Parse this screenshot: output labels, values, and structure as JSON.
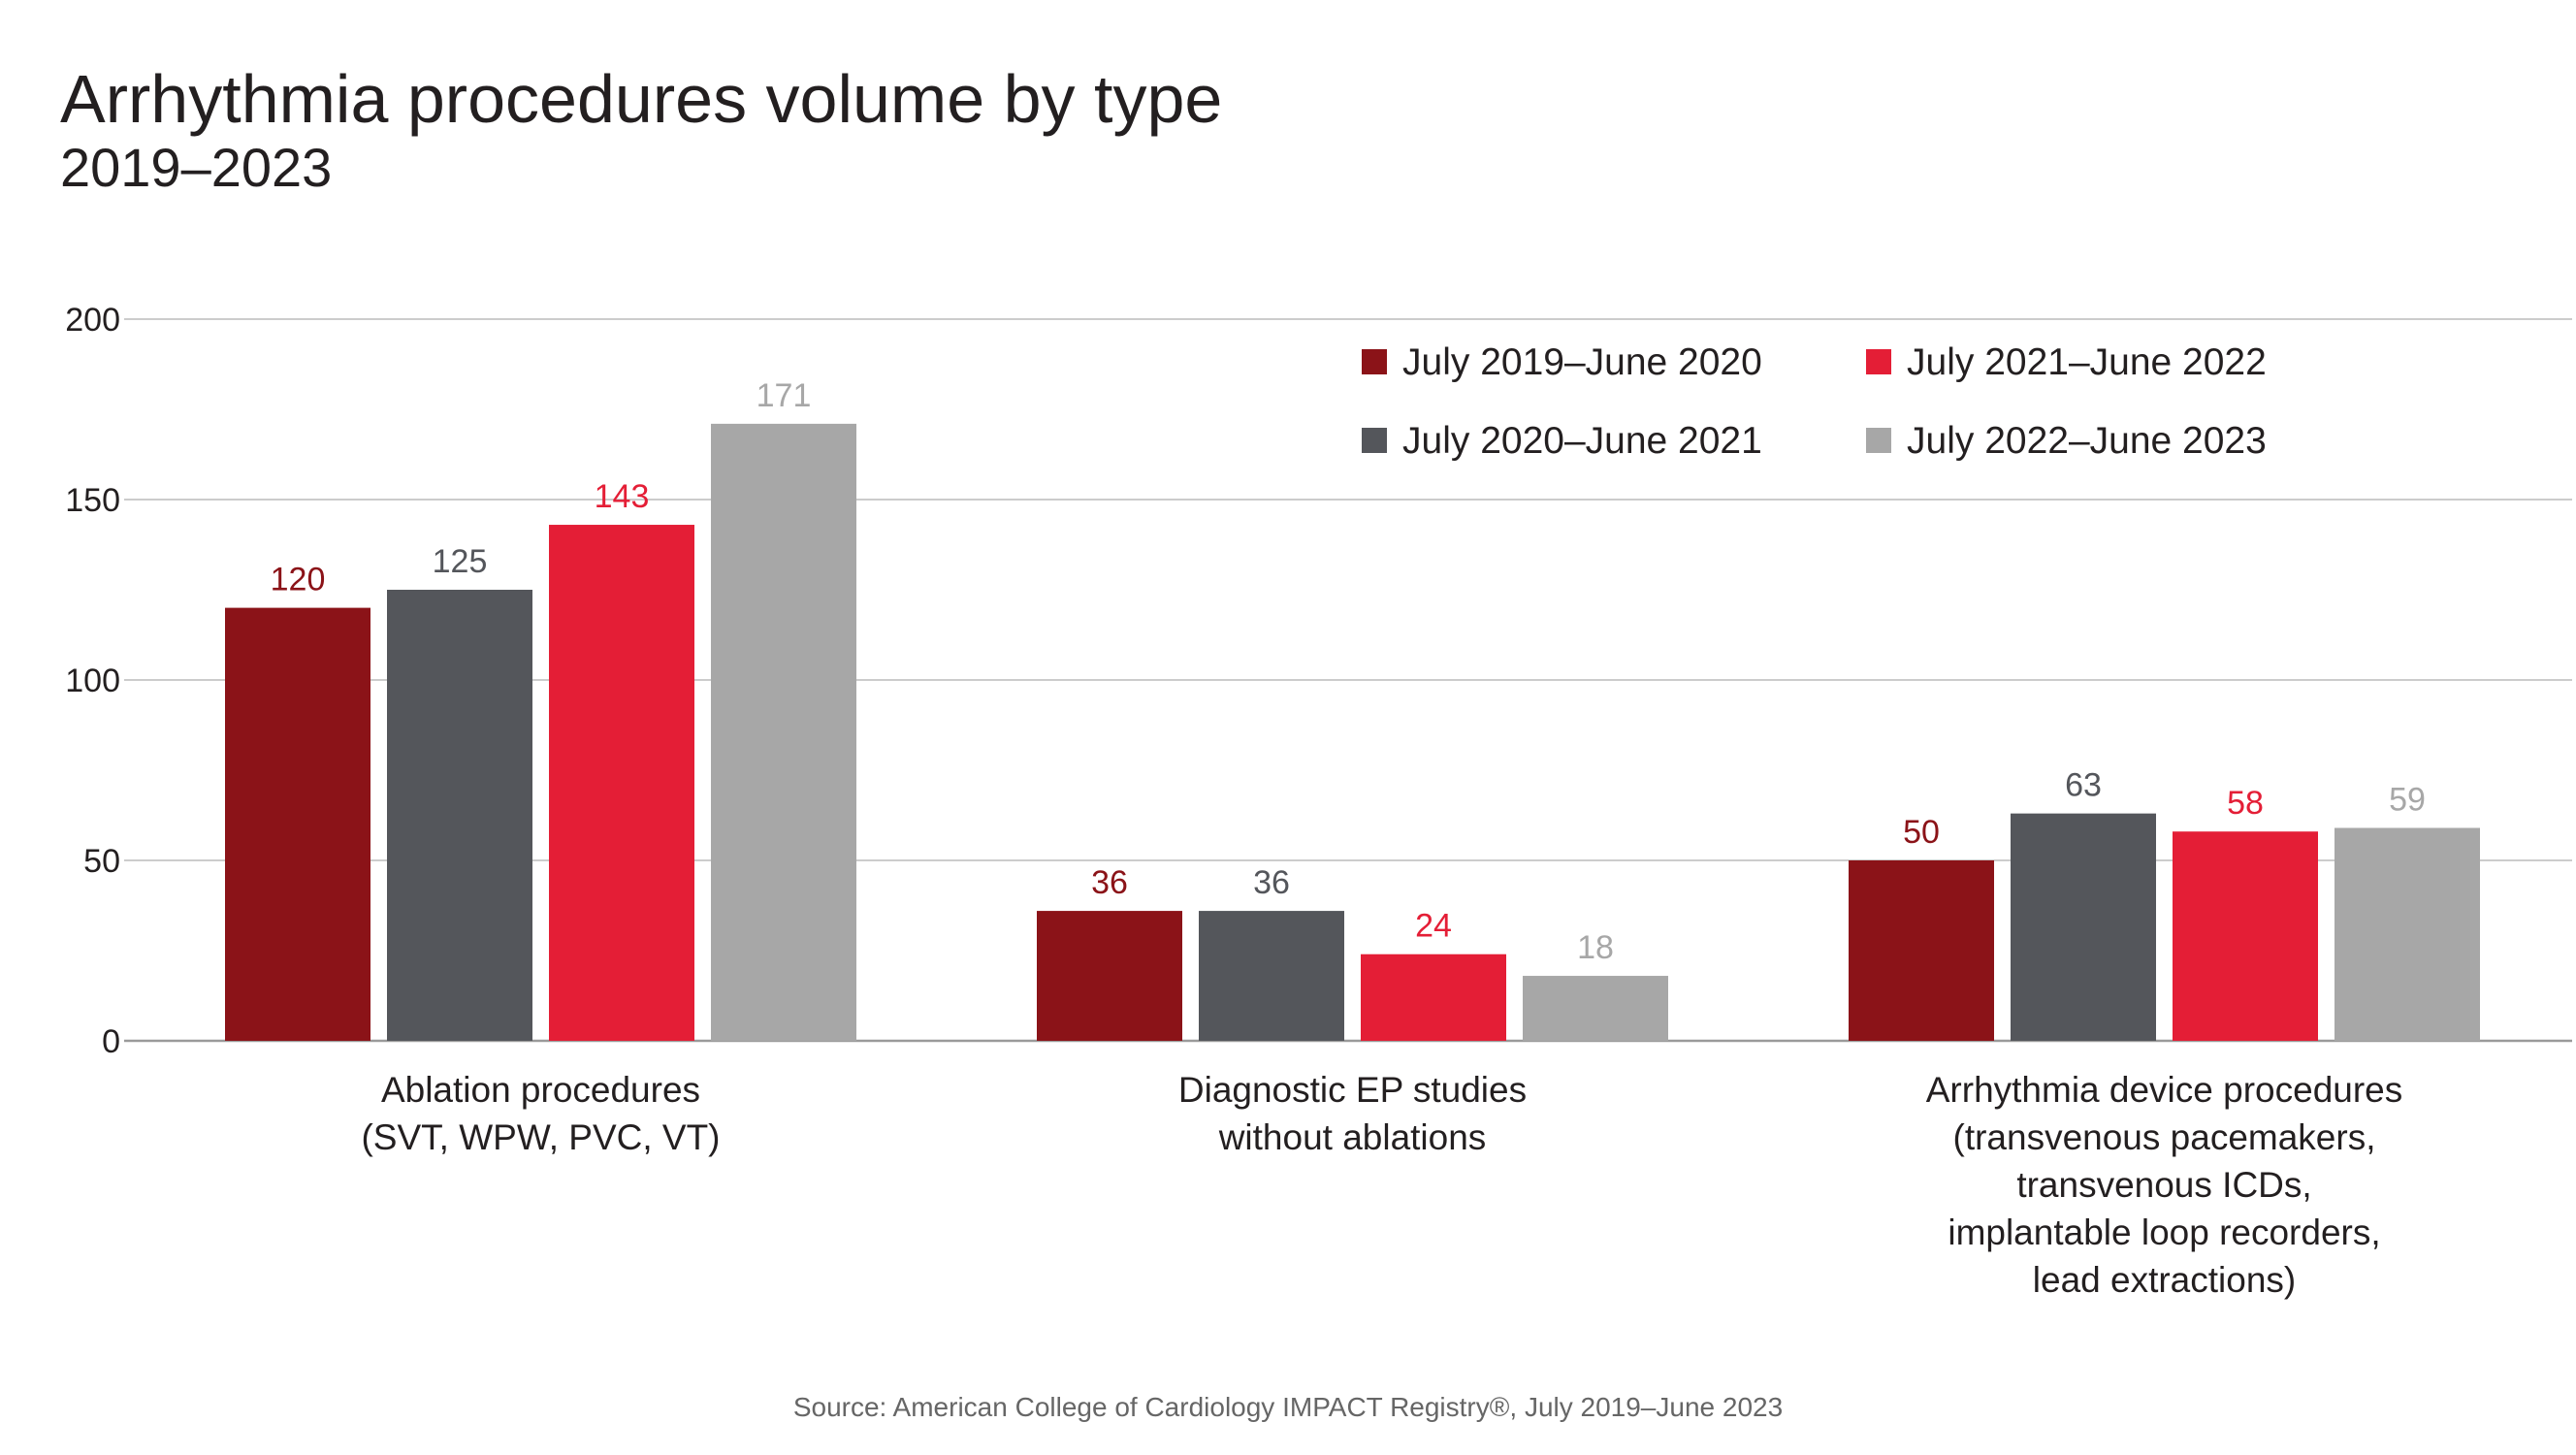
{
  "header": {
    "title": "Arrhythmia procedures volume by type",
    "subtitle": "2019–2023"
  },
  "footer": {
    "source": "Source: American College of Cardiology IMPACT Registry®, July 2019–June 2023"
  },
  "chart_data": {
    "type": "bar",
    "title": "Arrhythmia procedures volume by type",
    "subtitle": "2019–2023",
    "xlabel": "",
    "ylabel": "",
    "ylim": [
      0,
      200
    ],
    "yticks": [
      0,
      50,
      100,
      150,
      200
    ],
    "grid": true,
    "legend_position": "top-right",
    "categories": [
      [
        "Ablation procedures",
        "(SVT, WPW, PVC, VT)"
      ],
      [
        "Diagnostic EP studies",
        "without ablations"
      ],
      [
        "Arrhythmia device procedures",
        "(transvenous pacemakers,",
        "transvenous ICDs,",
        "implantable loop recorders,",
        "lead extractions)"
      ]
    ],
    "series": [
      {
        "name": "July 2019–June 2020",
        "color": "#8b1318",
        "label_color": "#8b1318",
        "values": [
          120,
          36,
          50
        ]
      },
      {
        "name": "July 2020–June 2021",
        "color": "#54565b",
        "label_color": "#54565b",
        "values": [
          125,
          36,
          63
        ]
      },
      {
        "name": "July 2021–June 2022",
        "color": "#e41e36",
        "label_color": "#e41e36",
        "values": [
          143,
          24,
          58
        ]
      },
      {
        "name": "July 2022–June 2023",
        "color": "#a7a7a7",
        "label_color": "#a7a7a7",
        "values": [
          171,
          18,
          59
        ]
      }
    ]
  }
}
